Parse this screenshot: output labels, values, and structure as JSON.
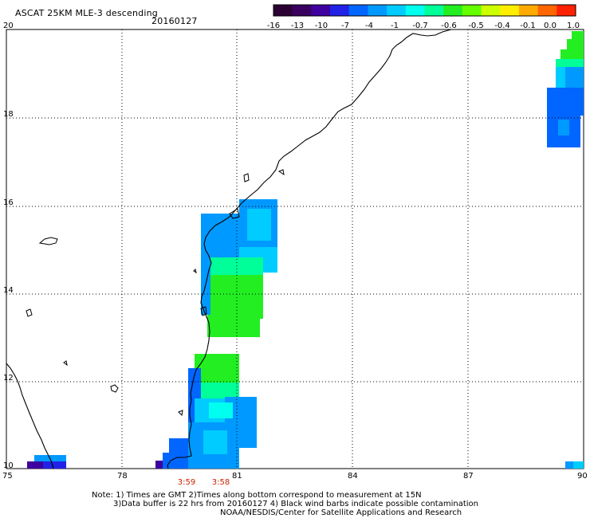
{
  "header": {
    "title": "ASCAT 25KM MLE-3 descending",
    "date": "20160127"
  },
  "colorbar": {
    "labels": [
      "-16",
      "-13",
      "-10",
      "-7",
      "-4",
      "-1",
      "-0.7",
      "-0.6",
      "-0.5",
      "-0.4",
      "-0.1",
      "0.0",
      "1.0"
    ],
    "colors": [
      "#2b0033",
      "#3a005f",
      "#3f00a0",
      "#2222e6",
      "#0066ff",
      "#0099ff",
      "#00ccff",
      "#00ffee",
      "#00ff99",
      "#22ee22",
      "#66ff00",
      "#ccff00",
      "#ffee00",
      "#ffaa00",
      "#ff6600",
      "#ff2200"
    ]
  },
  "axes": {
    "x_labels": [
      "75",
      "78",
      "81",
      "84",
      "87",
      "90"
    ],
    "y_labels": [
      "20",
      "18",
      "16",
      "14",
      "12",
      "10"
    ],
    "xlim": [
      75,
      90
    ],
    "ylim": [
      10,
      20
    ]
  },
  "times": [
    {
      "label": "3:59",
      "lon": 80.0
    },
    {
      "label": "3:58",
      "lon": 80.7
    }
  ],
  "notes": {
    "line1": "Note: 1) Times are GMT 2)Times along bottom correspond to measurement at 15N",
    "line2": "3)Data buffer is 22 hrs from 20160127 4) Black wind barbs indicate possible contamination",
    "line3": "NOAA/NESDIS/Center for Satellite Applications and Research"
  },
  "map_features": {
    "coastline": "black-line",
    "grid": "dotted",
    "swaths": [
      {
        "name": "swath-west-coast",
        "colors": [
          "#0099ff",
          "#00ccff",
          "#00ff99",
          "#22ee22"
        ]
      },
      {
        "name": "swath-east-edge",
        "colors": [
          "#0066ff",
          "#0099ff",
          "#00ccff",
          "#22ee22"
        ]
      }
    ]
  }
}
